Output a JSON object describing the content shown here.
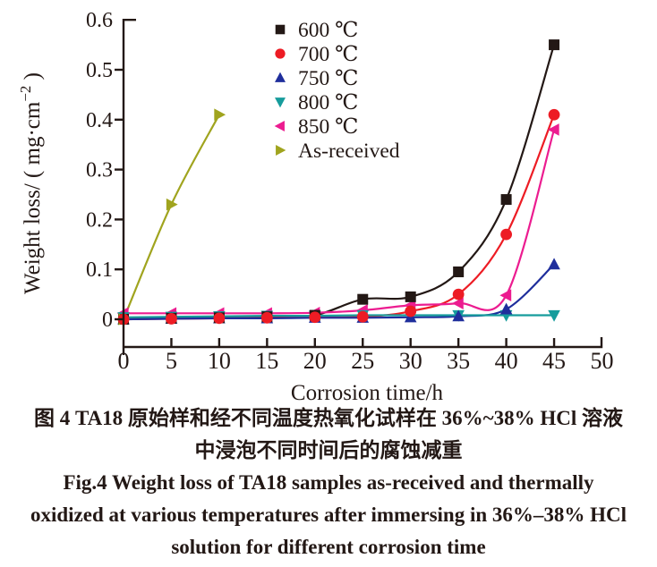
{
  "figure": {
    "caption": {
      "cn_line1": "图 4  TA18 原始样和经不同温度热氧化试样在 36%~38% HCl 溶液",
      "cn_line2": "中浸泡不同时间后的腐蚀减重",
      "en_line1": "Fig.4  Weight loss of TA18 samples as-received and thermally",
      "en_line2": "oxidized at various temperatures after immersing in 36%–38% HCl",
      "en_line3": "solution for different corrosion time"
    }
  },
  "chart_data": {
    "type": "line",
    "title": "",
    "xlabel": "Corrosion time/h",
    "ylabel": "Weight loss/ ( mg·cm⁻² )",
    "ylabel_parts": {
      "pre": "Weight loss/ ( mg·cm",
      "sup": "−2",
      "post": " )"
    },
    "xlim": [
      0,
      50
    ],
    "ylim": [
      0,
      0.6
    ],
    "x_ticks": [
      0,
      5,
      10,
      15,
      20,
      25,
      30,
      35,
      40,
      45,
      50
    ],
    "y_ticks": [
      0,
      0.1,
      0.2,
      0.3,
      0.4,
      0.5,
      0.6
    ],
    "grid": false,
    "legend_position": "upper center-right inside plot",
    "axis_color": "#231815",
    "x": [
      0,
      5,
      10,
      15,
      20,
      25,
      30,
      35,
      40,
      45
    ],
    "series": [
      {
        "name": "600 ℃",
        "marker": "square",
        "color": "#231815",
        "values": [
          0,
          0.002,
          0.003,
          0.005,
          0.008,
          0.04,
          0.045,
          0.095,
          0.24,
          0.55
        ]
      },
      {
        "name": "700 ℃",
        "marker": "circle",
        "color": "#ed1c24",
        "values": [
          0,
          0.001,
          0.002,
          0.003,
          0.004,
          0.005,
          0.016,
          0.05,
          0.17,
          0.41
        ]
      },
      {
        "name": "750 ℃",
        "marker": "triangle-up",
        "color": "#1f2e9c",
        "values": [
          0,
          0.001,
          0.002,
          0.002,
          0.003,
          0.003,
          0.004,
          0.006,
          0.02,
          0.11
        ]
      },
      {
        "name": "800 ℃",
        "marker": "triangle-down",
        "color": "#169c9c",
        "values": [
          0.004,
          0.005,
          0.006,
          0.007,
          0.007,
          0.008,
          0.008,
          0.008,
          0.008,
          0.008
        ]
      },
      {
        "name": "850 ℃",
        "marker": "triangle-left",
        "color": "#ec1c90",
        "values": [
          0.012,
          0.012,
          0.012,
          0.012,
          0.013,
          0.018,
          0.028,
          0.032,
          0.048,
          0.38
        ]
      },
      {
        "name": "As-received",
        "marker": "triangle-right",
        "color": "#a0a41e",
        "x": [
          0,
          5,
          10
        ],
        "values": [
          0,
          0.23,
          0.41
        ]
      }
    ]
  }
}
